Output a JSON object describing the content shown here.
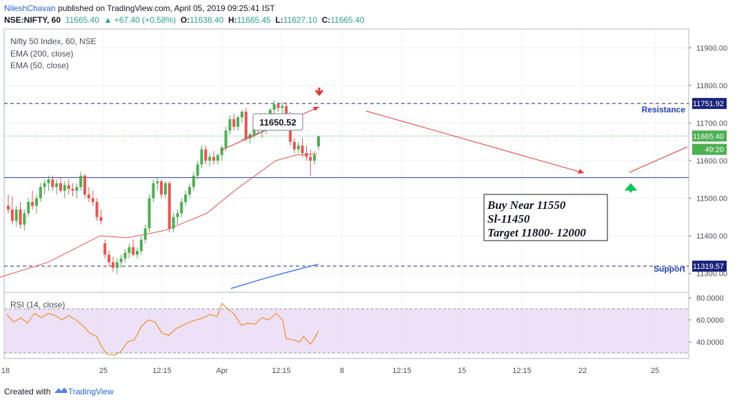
{
  "header": {
    "author": "NileshChavan",
    "published_text": "published on TradingView.com, April 05, 2019 09:25:41 IST",
    "symbol": "NSE:NIFTY, 60",
    "last": "11665.40",
    "change": "▲ +67.40 (+0.58%)",
    "open_label": "O:",
    "open": "11638.40",
    "high_label": "H:",
    "high": "11665.45",
    "low_label": "L:",
    "low": "11627.10",
    "close_label": "C:",
    "close": "11665.40"
  },
  "legend": {
    "title": "Nifty 50 Index, 60, NSE",
    "ema200": "EMA (200, close)",
    "ema50": "EMA (50, close)",
    "rsi": "RSI (14, close)"
  },
  "annotations": {
    "resistance": "Resistance",
    "support": "Support",
    "callout": "11650.52",
    "trade_box": [
      "Buy Near 11550",
      "Sl-11450",
      "Target 11800- 12000"
    ]
  },
  "footer": {
    "created_with": "Created with",
    "brand": "TradingView"
  },
  "colors": {
    "bull": "#26a69a",
    "bear": "#ef5350",
    "bull_bar": "#4caf50",
    "ema50": "#ef5350",
    "ema200": "#2962ff",
    "rsi": "#f57c00",
    "rsi_band": "#e8daf5",
    "level": "#1a237e",
    "blue_line": "#3f51b5",
    "text_blue": "#1e3fc4",
    "arrow_red": "#e53935",
    "arrow_green": "#00c853"
  },
  "chart_data": {
    "type": "candlestick",
    "price_axis": {
      "min": 11250,
      "max": 11950,
      "ticks": [
        "11900.00",
        "11800.00",
        "11700.00",
        "11600.00",
        "11500.00",
        "11400.00",
        "11300.00"
      ]
    },
    "rsi_axis": {
      "min": 25,
      "max": 85,
      "ticks": [
        "80.0000",
        "60.0000",
        "40.0000"
      ],
      "band": [
        30,
        70
      ]
    },
    "time_ticks": [
      "18",
      "25",
      "12:15",
      "Apr",
      "12:15",
      "8",
      "12:15",
      "15",
      "12:15",
      "22",
      "25"
    ],
    "price_badges": [
      {
        "label": "11751.92",
        "value": 11751.92,
        "style": "level"
      },
      {
        "label": "11665.40",
        "value": 11665.4,
        "style": "last"
      },
      {
        "label": "49:20",
        "value": 11630,
        "style": "countdown"
      },
      {
        "label": "11319.57",
        "value": 11319.57,
        "style": "level"
      }
    ],
    "levels": {
      "resistance": 11751.92,
      "support": 11319.57,
      "last": 11665.4,
      "blue_line": 11555
    },
    "candles": [
      [
        11480,
        11510,
        11460,
        11470
      ],
      [
        11470,
        11505,
        11430,
        11440
      ],
      [
        11440,
        11480,
        11425,
        11470
      ],
      [
        11470,
        11490,
        11420,
        11430
      ],
      [
        11430,
        11470,
        11415,
        11460
      ],
      [
        11460,
        11500,
        11450,
        11490
      ],
      [
        11490,
        11520,
        11470,
        11480
      ],
      [
        11480,
        11510,
        11460,
        11500
      ],
      [
        11500,
        11540,
        11490,
        11530
      ],
      [
        11530,
        11550,
        11510,
        11540
      ],
      [
        11540,
        11560,
        11520,
        11550
      ],
      [
        11550,
        11560,
        11520,
        11530
      ],
      [
        11530,
        11550,
        11510,
        11540
      ],
      [
        11540,
        11555,
        11515,
        11520
      ],
      [
        11520,
        11545,
        11500,
        11535
      ],
      [
        11535,
        11550,
        11510,
        11525
      ],
      [
        11525,
        11540,
        11505,
        11520
      ],
      [
        11520,
        11540,
        11500,
        11530
      ],
      [
        11530,
        11570,
        11520,
        11560
      ],
      [
        11560,
        11565,
        11500,
        11510
      ],
      [
        11510,
        11530,
        11490,
        11500
      ],
      [
        11500,
        11520,
        11480,
        11490
      ],
      [
        11490,
        11500,
        11440,
        11450
      ],
      [
        11450,
        11470,
        11430,
        11440
      ],
      [
        11380,
        11390,
        11340,
        11350
      ],
      [
        11350,
        11360,
        11320,
        11330
      ],
      [
        11330,
        11345,
        11305,
        11315
      ],
      [
        11315,
        11340,
        11300,
        11330
      ],
      [
        11330,
        11350,
        11315,
        11340
      ],
      [
        11340,
        11365,
        11330,
        11355
      ],
      [
        11355,
        11380,
        11340,
        11370
      ],
      [
        11370,
        11390,
        11345,
        11350
      ],
      [
        11350,
        11370,
        11340,
        11360
      ],
      [
        11360,
        11400,
        11350,
        11390
      ],
      [
        11390,
        11430,
        11380,
        11420
      ],
      [
        11420,
        11510,
        11410,
        11500
      ],
      [
        11500,
        11550,
        11490,
        11540
      ],
      [
        11540,
        11555,
        11520,
        11545
      ],
      [
        11545,
        11550,
        11500,
        11510
      ],
      [
        11510,
        11545,
        11500,
        11540
      ],
      [
        11540,
        11545,
        11410,
        11420
      ],
      [
        11420,
        11460,
        11410,
        11450
      ],
      [
        11450,
        11470,
        11430,
        11460
      ],
      [
        11460,
        11500,
        11450,
        11490
      ],
      [
        11490,
        11520,
        11480,
        11510
      ],
      [
        11510,
        11540,
        11500,
        11530
      ],
      [
        11530,
        11570,
        11520,
        11560
      ],
      [
        11560,
        11600,
        11550,
        11590
      ],
      [
        11590,
        11640,
        11580,
        11630
      ],
      [
        11630,
        11640,
        11590,
        11600
      ],
      [
        11600,
        11620,
        11585,
        11610
      ],
      [
        11610,
        11625,
        11590,
        11600
      ],
      [
        11600,
        11620,
        11590,
        11615
      ],
      [
        11615,
        11640,
        11600,
        11635
      ],
      [
        11635,
        11690,
        11625,
        11680
      ],
      [
        11680,
        11720,
        11670,
        11710
      ],
      [
        11710,
        11725,
        11680,
        11690
      ],
      [
        11690,
        11720,
        11680,
        11715
      ],
      [
        11715,
        11735,
        11700,
        11730
      ],
      [
        11730,
        11740,
        11650,
        11660
      ],
      [
        11660,
        11675,
        11645,
        11670
      ],
      [
        11670,
        11710,
        11660,
        11700
      ],
      [
        11700,
        11715,
        11670,
        11680
      ],
      [
        11680,
        11700,
        11660,
        11690
      ],
      [
        11690,
        11705,
        11670,
        11700
      ],
      [
        11700,
        11740,
        11690,
        11735
      ],
      [
        11735,
        11760,
        11720,
        11750
      ],
      [
        11750,
        11755,
        11730,
        11740
      ],
      [
        11740,
        11755,
        11720,
        11745
      ],
      [
        11745,
        11755,
        11710,
        11720
      ],
      [
        11720,
        11730,
        11640,
        11650
      ],
      [
        11650,
        11660,
        11620,
        11630
      ],
      [
        11630,
        11650,
        11620,
        11640
      ],
      [
        11640,
        11660,
        11610,
        11620
      ],
      [
        11620,
        11640,
        11600,
        11610
      ],
      [
        11610,
        11630,
        11560,
        11600
      ],
      [
        11600,
        11625,
        11590,
        11615
      ],
      [
        11638,
        11666,
        11627,
        11665
      ]
    ],
    "ema50": [
      [
        0,
        11290
      ],
      [
        70,
        11330
      ],
      [
        145,
        11400
      ],
      [
        185,
        11395
      ],
      [
        240,
        11415
      ],
      [
        300,
        11460
      ],
      [
        340,
        11520
      ],
      [
        400,
        11600
      ],
      [
        430,
        11615
      ],
      [
        460,
        11618
      ]
    ],
    "ema200": [
      [
        335,
        11260
      ],
      [
        380,
        11285
      ],
      [
        420,
        11305
      ],
      [
        462,
        11325
      ]
    ],
    "rsi": [
      [
        10,
        65
      ],
      [
        20,
        58
      ],
      [
        30,
        62
      ],
      [
        40,
        57
      ],
      [
        50,
        66
      ],
      [
        60,
        62
      ],
      [
        70,
        66
      ],
      [
        80,
        64
      ],
      [
        90,
        60
      ],
      [
        100,
        64
      ],
      [
        110,
        60
      ],
      [
        120,
        55
      ],
      [
        130,
        48
      ],
      [
        140,
        45
      ],
      [
        148,
        35
      ],
      [
        155,
        29
      ],
      [
        165,
        28
      ],
      [
        175,
        31
      ],
      [
        185,
        40
      ],
      [
        195,
        42
      ],
      [
        205,
        54
      ],
      [
        215,
        60
      ],
      [
        225,
        58
      ],
      [
        235,
        48
      ],
      [
        245,
        46
      ],
      [
        255,
        52
      ],
      [
        265,
        55
      ],
      [
        275,
        58
      ],
      [
        285,
        60
      ],
      [
        295,
        62
      ],
      [
        305,
        65
      ],
      [
        315,
        63
      ],
      [
        322,
        75
      ],
      [
        330,
        70
      ],
      [
        340,
        65
      ],
      [
        350,
        55
      ],
      [
        360,
        57
      ],
      [
        370,
        56
      ],
      [
        380,
        62
      ],
      [
        390,
        60
      ],
      [
        400,
        66
      ],
      [
        410,
        60
      ],
      [
        415,
        43
      ],
      [
        425,
        42
      ],
      [
        435,
        40
      ],
      [
        440,
        45
      ],
      [
        450,
        38
      ],
      [
        455,
        42
      ],
      [
        462,
        50
      ]
    ]
  }
}
